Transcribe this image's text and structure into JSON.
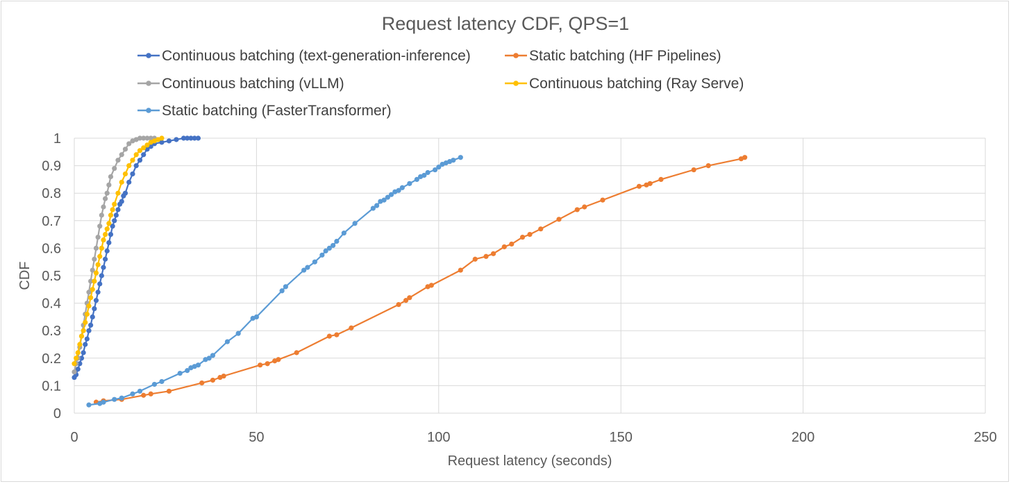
{
  "chart_data": {
    "type": "line",
    "title": "Request latency CDF, QPS=1",
    "xlabel": "Request latency (seconds)",
    "ylabel": "CDF",
    "xlim": [
      0,
      250
    ],
    "ylim": [
      0,
      1
    ],
    "x_ticks": [
      "0",
      "50",
      "100",
      "150",
      "200",
      "250"
    ],
    "y_ticks": [
      "0",
      "0.1",
      "0.2",
      "0.3",
      "0.4",
      "0.5",
      "0.6",
      "0.7",
      "0.8",
      "0.9",
      "1"
    ],
    "grid": "vertical and horizontal major gridlines",
    "legend_placement": "top",
    "series": [
      {
        "name": "Continuous batching (text-generation-inference)",
        "color": "#4472c4",
        "x": [
          0,
          0.5,
          1,
          1.5,
          2,
          2.5,
          3,
          3.5,
          4,
          4.5,
          5,
          5.5,
          6,
          6.5,
          7,
          7.5,
          8,
          8.5,
          9,
          9.5,
          10,
          10.5,
          11,
          11.5,
          12,
          12.5,
          13,
          13.5,
          14,
          15,
          16,
          17,
          18,
          19,
          20,
          21,
          22,
          24,
          26,
          28,
          30,
          31,
          32,
          33,
          34
        ],
        "y": [
          0.13,
          0.14,
          0.16,
          0.18,
          0.2,
          0.22,
          0.25,
          0.27,
          0.3,
          0.32,
          0.35,
          0.38,
          0.41,
          0.44,
          0.47,
          0.5,
          0.53,
          0.56,
          0.59,
          0.62,
          0.65,
          0.68,
          0.7,
          0.72,
          0.74,
          0.76,
          0.77,
          0.79,
          0.8,
          0.84,
          0.87,
          0.9,
          0.92,
          0.94,
          0.96,
          0.97,
          0.98,
          0.985,
          0.99,
          0.995,
          1,
          1,
          1,
          1,
          1
        ]
      },
      {
        "name": "Static batching (HF Pipelines)",
        "color": "#ed7d31",
        "x": [
          6,
          8,
          13,
          19,
          21,
          26,
          35,
          38,
          40,
          41,
          51,
          53,
          55,
          56,
          61,
          70,
          72,
          76,
          89,
          91,
          92,
          97,
          98,
          106,
          110,
          113,
          115,
          118,
          120,
          123,
          125,
          128,
          133,
          138,
          140,
          145,
          155,
          157,
          158,
          161,
          170,
          174,
          183,
          184
        ],
        "y": [
          0.04,
          0.045,
          0.05,
          0.065,
          0.07,
          0.08,
          0.11,
          0.12,
          0.13,
          0.135,
          0.175,
          0.18,
          0.19,
          0.195,
          0.22,
          0.28,
          0.285,
          0.31,
          0.395,
          0.41,
          0.42,
          0.46,
          0.465,
          0.52,
          0.56,
          0.57,
          0.58,
          0.605,
          0.615,
          0.64,
          0.65,
          0.67,
          0.705,
          0.74,
          0.75,
          0.775,
          0.825,
          0.83,
          0.835,
          0.85,
          0.885,
          0.9,
          0.925,
          0.93
        ]
      },
      {
        "name": "Continuous batching (vLLM)",
        "color": "#a5a5a5",
        "x": [
          0,
          0.5,
          1,
          1.5,
          2,
          2.5,
          3,
          3.5,
          4,
          4.5,
          5,
          5.5,
          6,
          6.5,
          7,
          7.5,
          8,
          8.5,
          9,
          9.5,
          10,
          11,
          12,
          13,
          14,
          15,
          16,
          17,
          18,
          19,
          20,
          21,
          22
        ],
        "y": [
          0.15,
          0.18,
          0.2,
          0.24,
          0.28,
          0.32,
          0.36,
          0.4,
          0.44,
          0.48,
          0.52,
          0.56,
          0.6,
          0.64,
          0.68,
          0.72,
          0.75,
          0.78,
          0.8,
          0.83,
          0.86,
          0.89,
          0.92,
          0.94,
          0.96,
          0.98,
          0.99,
          0.995,
          1,
          1,
          1,
          1,
          1
        ]
      },
      {
        "name": "Continuous batching (Ray Serve)",
        "color": "#ffc000",
        "x": [
          0,
          0.5,
          1,
          1.5,
          2,
          2.5,
          3,
          3.5,
          4,
          4.5,
          5,
          5.5,
          6,
          6.5,
          7,
          7.5,
          8,
          8.5,
          9,
          9.5,
          10,
          10.5,
          11,
          12,
          13,
          14,
          15,
          16,
          17,
          18,
          19,
          20,
          21,
          22,
          23,
          24
        ],
        "y": [
          0.18,
          0.2,
          0.22,
          0.25,
          0.28,
          0.3,
          0.33,
          0.36,
          0.39,
          0.42,
          0.45,
          0.48,
          0.51,
          0.54,
          0.57,
          0.6,
          0.63,
          0.65,
          0.67,
          0.69,
          0.72,
          0.74,
          0.76,
          0.8,
          0.84,
          0.87,
          0.9,
          0.92,
          0.94,
          0.955,
          0.965,
          0.975,
          0.985,
          0.99,
          0.995,
          1
        ]
      },
      {
        "name": "Static batching (FasterTransformer)",
        "color": "#5b9bd5",
        "x": [
          4,
          7,
          8,
          11,
          13,
          16,
          18,
          22,
          24,
          29,
          31,
          32,
          33,
          34,
          36,
          37,
          38,
          42,
          45,
          49,
          50,
          57,
          58,
          63,
          64,
          66,
          68,
          69,
          70,
          71,
          72,
          74,
          77,
          82,
          83,
          84,
          85,
          86,
          87,
          88,
          89,
          90,
          92,
          94,
          95,
          96,
          97,
          99,
          100,
          101,
          102,
          103,
          104,
          106
        ],
        "y": [
          0.03,
          0.035,
          0.04,
          0.05,
          0.055,
          0.07,
          0.08,
          0.105,
          0.115,
          0.145,
          0.155,
          0.165,
          0.17,
          0.175,
          0.195,
          0.2,
          0.21,
          0.26,
          0.29,
          0.345,
          0.35,
          0.445,
          0.46,
          0.52,
          0.53,
          0.55,
          0.575,
          0.59,
          0.6,
          0.61,
          0.625,
          0.655,
          0.69,
          0.745,
          0.755,
          0.77,
          0.775,
          0.785,
          0.795,
          0.805,
          0.81,
          0.82,
          0.835,
          0.85,
          0.86,
          0.865,
          0.875,
          0.885,
          0.895,
          0.905,
          0.91,
          0.915,
          0.92,
          0.93
        ]
      }
    ]
  }
}
